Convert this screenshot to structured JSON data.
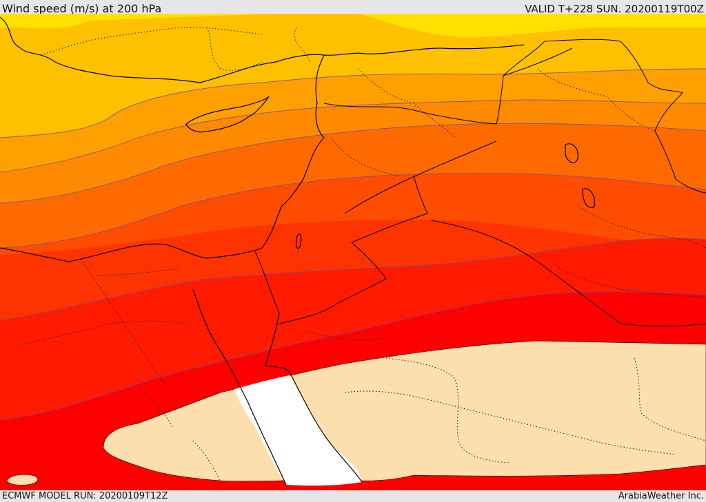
{
  "header": {
    "title": "Wind speed (m/s) at 200 hPa",
    "valid": "VALID T+228 SUN. 20200119T00Z"
  },
  "footer": {
    "model_run": "ECMWF MODEL RUN: 20200109T12Z",
    "credit": "ArabiaWeather Inc."
  },
  "map": {
    "variable": "wind speed",
    "level": "200 hPa",
    "bands": [
      {
        "color": "#ffe000"
      },
      {
        "color": "#ffc000"
      },
      {
        "color": "#ffa000"
      },
      {
        "color": "#ff8a00"
      },
      {
        "color": "#ff6a00"
      },
      {
        "color": "#ff4c00"
      },
      {
        "color": "#ff3300"
      },
      {
        "color": "#ff1a00"
      },
      {
        "color": "#ff0000"
      },
      {
        "color": "#fddfae"
      },
      {
        "color": "#ffffff"
      }
    ]
  }
}
